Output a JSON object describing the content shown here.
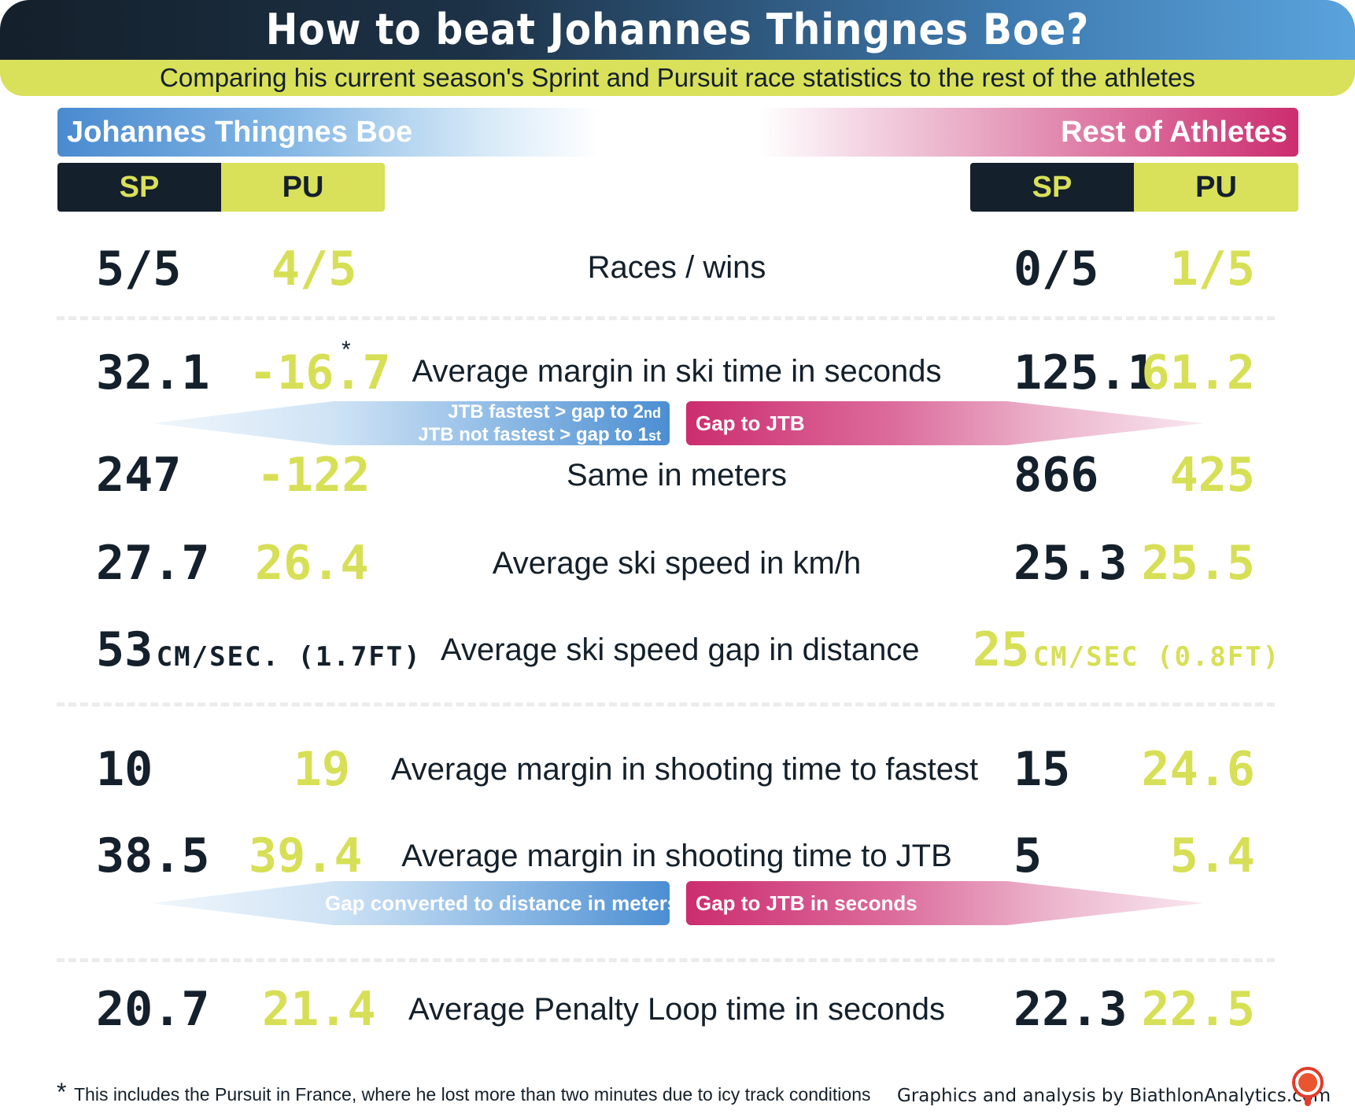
{
  "header": {
    "title": "How to beat Johannes Thingnes Boe?",
    "subtitle": "Comparing his current season's Sprint and Pursuit race statistics to the rest of the athletes"
  },
  "groups": {
    "jtb": {
      "name": "Johannes Thingnes Boe",
      "sp_tab": "SP",
      "pu_tab": "PU"
    },
    "rest": {
      "name": "Rest of Athletes",
      "sp_tab": "SP",
      "pu_tab": "PU"
    }
  },
  "rows": {
    "races_wins": {
      "label": "Races / wins",
      "jtb_sp": "5/5",
      "jtb_pu": "4/5",
      "rest_sp": "0/5",
      "rest_pu": "1/5"
    },
    "ski_margin": {
      "label": "Average margin in ski time in seconds",
      "jtb_sp": "32.1",
      "jtb_pu": "-16.7",
      "asterisk": "*",
      "rest_sp": "125.1",
      "rest_pu": "61.2"
    },
    "meters": {
      "label": "Same in meters",
      "jtb_sp": "247",
      "jtb_pu": "-122",
      "rest_sp": "866",
      "rest_pu": "425"
    },
    "ski_speed": {
      "label": "Average ski speed in km/h",
      "jtb_sp": "27.7",
      "jtb_pu": "26.4",
      "rest_sp": "25.3",
      "rest_pu": "25.5"
    },
    "speed_gap": {
      "label": "Average ski speed gap in distance",
      "jtb_value": "53",
      "jtb_unit": "CM/SEC. (1.7FT)",
      "rest_value": "25",
      "rest_unit": "CM/SEC (0.8FT)"
    },
    "shoot_fastest": {
      "label": "Average margin in shooting time to fastest",
      "jtb_sp": "10",
      "jtb_pu": "19",
      "rest_sp": "15",
      "rest_pu": "24.6"
    },
    "shoot_jtb": {
      "label": "Average margin in shooting time to JTB",
      "jtb_sp": "38.5",
      "jtb_pu": "39.4",
      "rest_sp": "5",
      "rest_pu": "5.4"
    },
    "penalty": {
      "label": "Average Penalty Loop time in seconds",
      "jtb_sp": "20.7",
      "jtb_pu": "21.4",
      "rest_sp": "22.3",
      "rest_pu": "22.5"
    }
  },
  "arrows": {
    "ski_left_line1": "JTB fastest > gap to 2",
    "ski_left_sup1": "nd",
    "ski_left_line2": "JTB not fastest > gap to 1",
    "ski_left_sup2": "st",
    "ski_right": "Gap to JTB",
    "shoot_left": "Gap converted to distance in meters",
    "shoot_right": "Gap to JTB in seconds"
  },
  "footer": {
    "footnote_star": "*",
    "footnote": "This includes the Pursuit in France, where he lost more than two minutes due to icy track conditions",
    "credit": "Graphics and analysis by BiathlonAnalytics.com"
  },
  "colors": {
    "navy": "#14202b",
    "lime": "#d9e05a",
    "blue": "#4a8ad0",
    "magenta": "#cc2d6f"
  }
}
